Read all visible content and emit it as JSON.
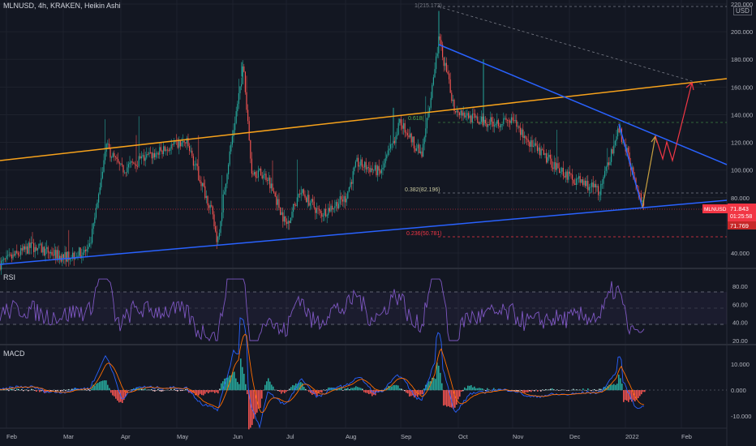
{
  "header": {
    "title": "MLNUSD, 4h, KRAKEN, Heikin Ashi"
  },
  "price_axis": {
    "currency": "USD",
    "ticks": [
      "220.000",
      "200.000",
      "180.000",
      "160.000",
      "140.000",
      "120.000",
      "100.000",
      "80.000",
      "60.000",
      "40.000"
    ]
  },
  "price_labels": {
    "symbol": "MLNUSD",
    "last_price": "71.843",
    "countdown": "01:25:58",
    "second_price": "71.769"
  },
  "fib_labels": {
    "top": "1(215.173)",
    "f0618": "0.618(",
    "f0382": "0.382(82.196)",
    "f0236": "0.236(50.781)"
  },
  "rsi_pane": {
    "title": "RSI",
    "ticks": [
      "80.00",
      "60.00",
      "40.00",
      "20.00"
    ]
  },
  "macd_pane": {
    "title": "MACD",
    "ticks": [
      "10.000",
      "0.000",
      "-10.000"
    ]
  },
  "time_axis": {
    "labels": [
      "Feb",
      "Mar",
      "Apr",
      "May",
      "Jun",
      "Jul",
      "Aug",
      "Sep",
      "Oct",
      "Nov",
      "Dec",
      "2022",
      "Feb"
    ]
  },
  "colors": {
    "background": "#131722",
    "bull": "#26a69a",
    "bear": "#ef5350",
    "trend_blue": "#2962ff",
    "trend_orange": "#f7a21b",
    "rsi_line": "#7e57c2",
    "macd_line": "#2962ff",
    "signal_line": "#ff6d00",
    "price_tag": "#f23645"
  },
  "chart_data": {
    "type": "candlestick",
    "symbol": "MLNUSD",
    "interval": "4h",
    "exchange": "KRAKEN",
    "style": "Heikin Ashi",
    "price_ylim": [
      40,
      220
    ],
    "rsi_ylim": [
      20,
      80
    ],
    "macd_ylim": [
      -10,
      10
    ],
    "price_path": [
      [
        "Feb",
        32
      ],
      [
        "Feb 15",
        45
      ],
      [
        "Mar",
        37
      ],
      [
        "Mar 15",
        42
      ],
      [
        "Mar 22",
        75
      ],
      [
        "Mar 29",
        118
      ],
      [
        "Apr 10",
        100
      ],
      [
        "Apr 20",
        108
      ],
      [
        "May",
        118
      ],
      [
        "May 10",
        120
      ],
      [
        "May 20",
        72
      ],
      [
        "May 23",
        48
      ],
      [
        "May 28",
        100
      ],
      [
        "Jun 3",
        175
      ],
      [
        "Jun 8",
        100
      ],
      [
        "Jun 20",
        95
      ],
      [
        "Jul",
        60
      ],
      [
        "Jul 10",
        85
      ],
      [
        "Jul 20",
        68
      ],
      [
        "Aug",
        80
      ],
      [
        "Aug 5",
        105
      ],
      [
        "Aug 20",
        98
      ],
      [
        "Sep",
        135
      ],
      [
        "Sep 10",
        110
      ],
      [
        "Sep 20",
        195
      ],
      [
        "Sep 28",
        145
      ],
      [
        "Oct 10",
        135
      ],
      [
        "Nov",
        135
      ],
      [
        "Nov 15",
        115
      ],
      [
        "Dec",
        95
      ],
      [
        "Dec 20",
        85
      ],
      [
        "Jan",
        130
      ],
      [
        "Jan 10",
        72
      ]
    ],
    "last_price": 71.843,
    "fib_levels": [
      {
        "level": 1,
        "price": 215.173
      },
      {
        "level": 0.382,
        "price": 82.196
      },
      {
        "level": 0.236,
        "price": 50.781
      }
    ],
    "rsi_levels": [
      70,
      50,
      30
    ],
    "rsi_last": 30,
    "macd_last": -2
  }
}
